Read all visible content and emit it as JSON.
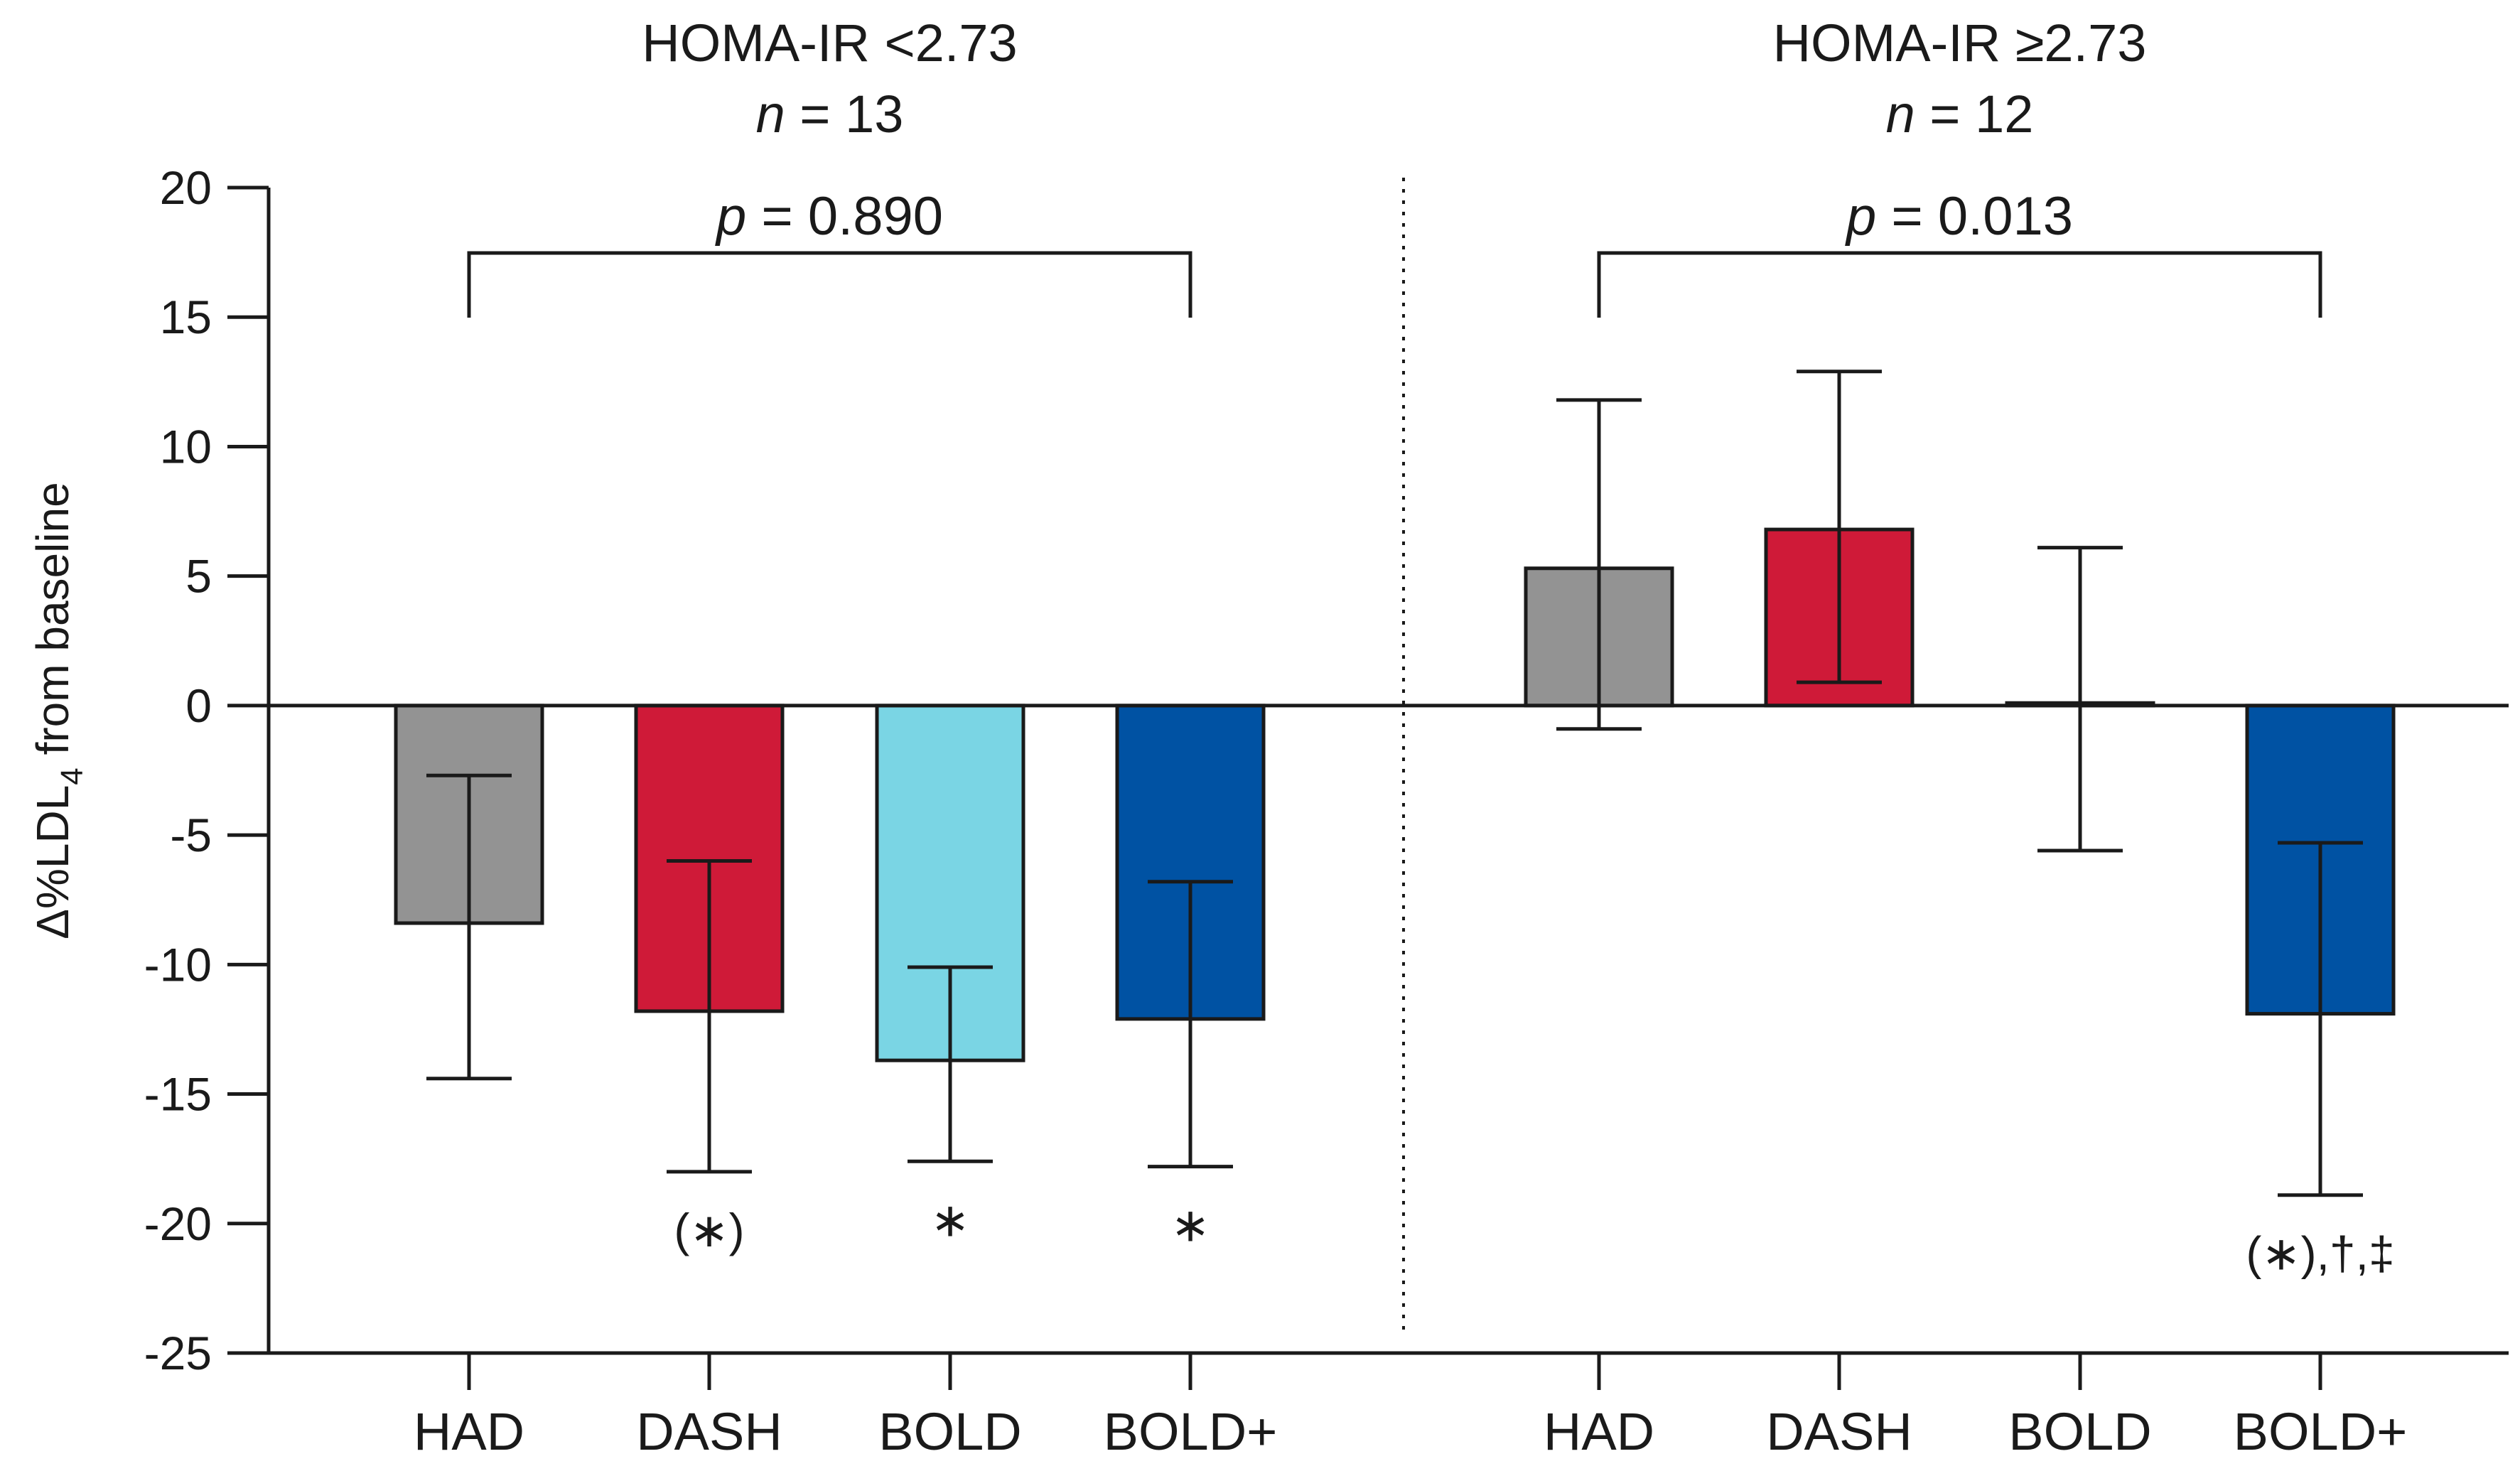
{
  "chart_data": {
    "type": "bar",
    "ylabel_main": "Δ%LDL",
    "ylabel_sub": "4",
    "ylabel_rest": " from baseline",
    "ylim": [
      -25,
      20
    ],
    "yticks": [
      20,
      15,
      10,
      5,
      0,
      -5,
      -10,
      -15,
      -20,
      -25
    ],
    "grid": false,
    "colors": {
      "HAD": "#939393",
      "DASH": "#cf1a38",
      "BOLD": "#7ad5e4",
      "BOLD+": "#0052a3"
    },
    "panels": [
      {
        "title_line1": "HOMA-IR <2.73",
        "n_label": "n",
        "n_value": " = 13",
        "p_label": "p",
        "p_value": " = 0.890",
        "categories": [
          "HAD",
          "DASH",
          "BOLD",
          "BOLD+"
        ],
        "values": [
          -8.4,
          -11.8,
          -13.7,
          -12.1
        ],
        "err_low": [
          -14.4,
          -18.0,
          -17.6,
          -17.8
        ],
        "err_high": [
          -2.7,
          -6.0,
          -10.1,
          -6.8
        ],
        "annotations": [
          "",
          "(∗)",
          "∗",
          "∗"
        ]
      },
      {
        "title_line1": "HOMA-IR ≥2.73",
        "n_label": "n",
        "n_value": " = 12",
        "p_label": "p",
        "p_value": " = 0.013",
        "categories": [
          "HAD",
          "DASH",
          "BOLD",
          "BOLD+"
        ],
        "values": [
          5.3,
          6.8,
          0.1,
          -11.9
        ],
        "err_low": [
          -0.9,
          0.9,
          -5.6,
          -18.9
        ],
        "err_high": [
          11.8,
          12.9,
          6.1,
          -5.3
        ],
        "annotations": [
          "",
          "",
          "",
          "(∗),†,‡"
        ]
      }
    ]
  }
}
